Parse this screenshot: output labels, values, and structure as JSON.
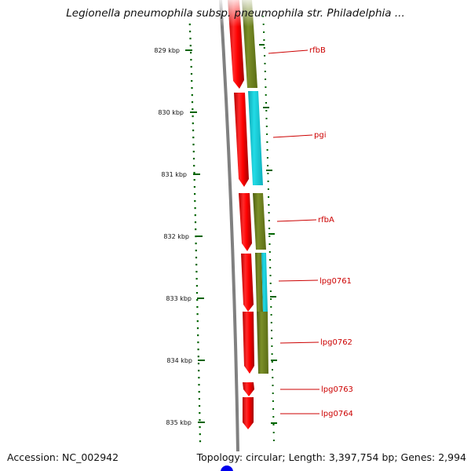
{
  "title": "Legionella pneumophila subsp. pneumophila str. Philadelphia ...",
  "footer": {
    "accession": "Accession: NC_002942",
    "summary": "Topology: circular; Length: 3,397,754 bp; Genes: 2,994"
  },
  "ruler_labels": [
    "829 kbp",
    "830 kbp",
    "831 kbp",
    "832 kbp",
    "833 kbp",
    "834 kbp",
    "835 kbp"
  ],
  "gene_labels": [
    "rfbB",
    "pgi",
    "rfbA",
    "lpg0761",
    "lpg0762",
    "lpg0763",
    "lpg0764"
  ],
  "colors": {
    "cds": "#ff0000",
    "cog_olive": "#6b7f1a",
    "cog_cyan": "#17c9d6",
    "backbone": "#808080",
    "tick": "#006400",
    "label": "#cc0000",
    "marker": "#0000ee"
  }
}
